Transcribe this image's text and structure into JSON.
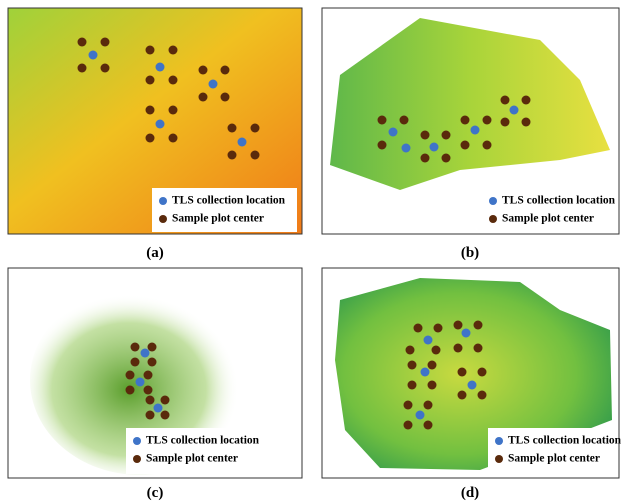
{
  "panels": [
    {
      "label": "(a)",
      "legend": [
        "TLS collection location",
        "Sample plot center"
      ]
    },
    {
      "label": "(b)",
      "legend": [
        "TLS collection location",
        "Sample plot center"
      ]
    },
    {
      "label": "(c)",
      "legend": [
        "TLS collection location",
        "Sample plot center"
      ]
    },
    {
      "label": "(d)",
      "legend": [
        "TLS collection location",
        "Sample plot center"
      ]
    }
  ]
}
